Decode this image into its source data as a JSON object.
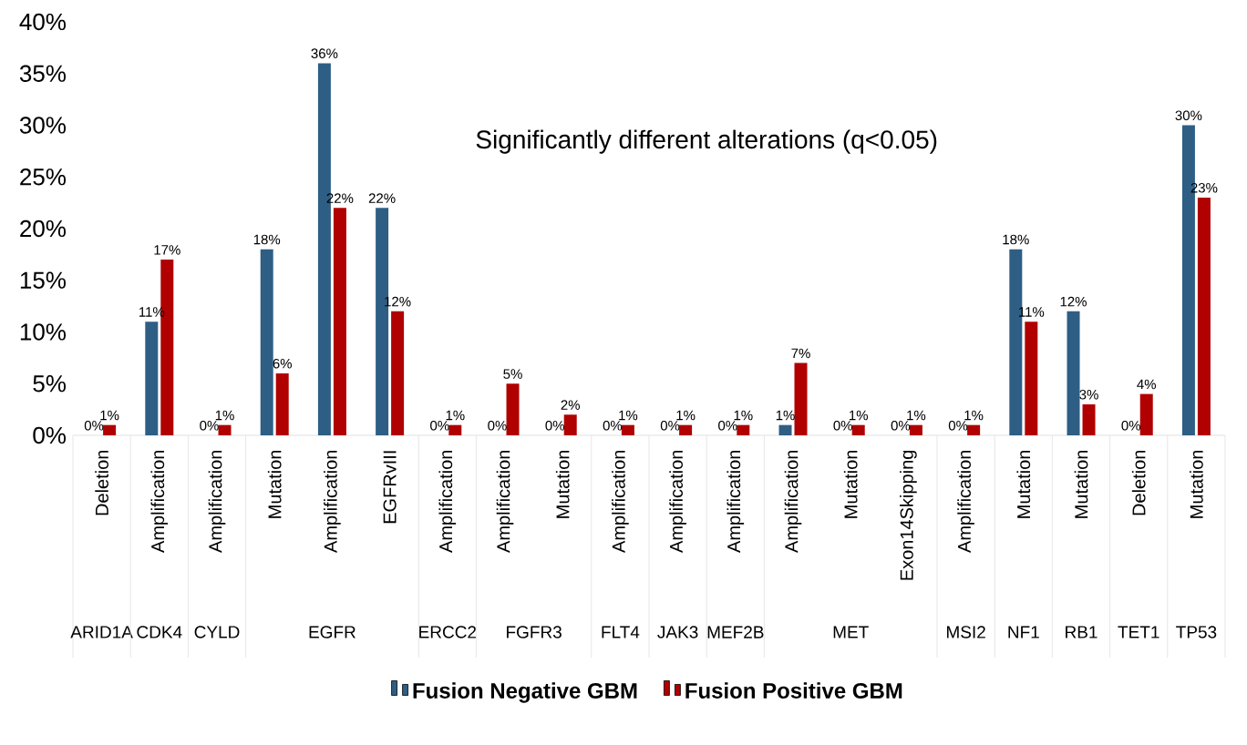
{
  "chart_data": {
    "type": "bar",
    "categories": [
      "Deletion",
      "Amplification",
      "Amplification",
      "Mutation",
      "Amplification",
      "EGFRvIII",
      "Amplification",
      "Amplification",
      "Mutation",
      "Amplification",
      "Amplification",
      "Amplification",
      "Amplification",
      "Mutation",
      "Exon14Skipping",
      "Amplification",
      "Mutation",
      "Mutation",
      "Deletion",
      "Mutation"
    ],
    "series": [
      {
        "name": "Fusion Negative GBM",
        "color": "#2e5e84",
        "values": [
          0,
          11,
          0,
          18,
          36,
          22,
          0,
          0,
          0,
          0,
          0,
          0,
          1,
          0,
          0,
          0,
          18,
          12,
          0,
          30
        ],
        "value_labels": [
          "0%",
          "11%",
          "0%",
          "18%",
          "36%",
          "22%",
          "0%",
          "0%",
          "0%",
          "0%",
          "0%",
          "0%",
          "1%",
          "0%",
          "0%",
          "0%",
          "18%",
          "12%",
          "0%",
          "30%"
        ]
      },
      {
        "name": "Fusion Positive GBM",
        "color": "#b00000",
        "values": [
          1,
          17,
          1,
          6,
          22,
          12,
          1,
          5,
          2,
          1,
          1,
          1,
          7,
          1,
          1,
          1,
          11,
          3,
          4,
          23
        ],
        "value_labels": [
          "1%",
          "17%",
          "1%",
          "6%",
          "22%",
          "12%",
          "1%",
          "5%",
          "2%",
          "1%",
          "1%",
          "1%",
          "7%",
          "1%",
          "1%",
          "1%",
          "11%",
          "3%",
          "4%",
          "23%"
        ]
      }
    ],
    "ylim": [
      0,
      40
    ],
    "yticks": [
      {
        "value": 0,
        "label": "0%"
      },
      {
        "value": 5,
        "label": "5%"
      },
      {
        "value": 10,
        "label": "10%"
      },
      {
        "value": 15,
        "label": "15%"
      },
      {
        "value": 20,
        "label": "20%"
      },
      {
        "value": 25,
        "label": "25%"
      },
      {
        "value": 30,
        "label": "30%"
      },
      {
        "value": 35,
        "label": "35%"
      },
      {
        "value": 40,
        "label": "40%"
      }
    ],
    "legend": "bottom",
    "annotations": [
      "Significantly different alterations (q<0.05)",
      "ARID1A",
      "CDK4",
      "CYLD",
      "EGFR",
      "ERCC2",
      "FGFR3",
      "FLT4",
      "JAK3",
      "MEF2B",
      "MET",
      "MSI2",
      "NF1",
      "RB1",
      "TET1",
      "TP53"
    ]
  }
}
